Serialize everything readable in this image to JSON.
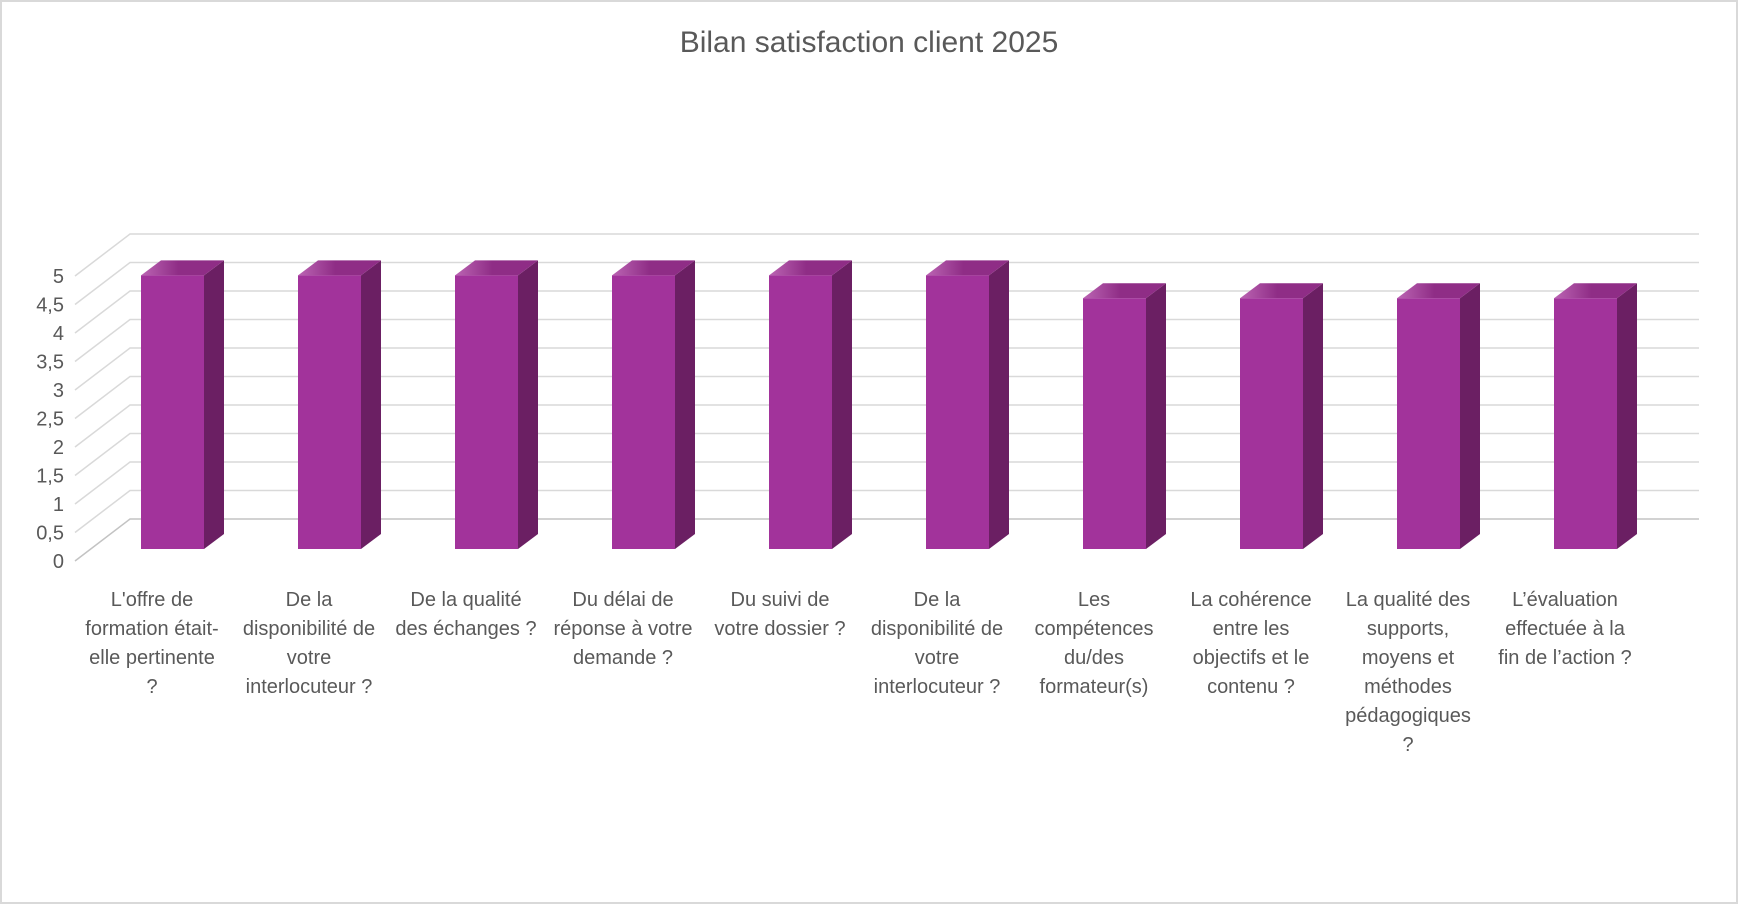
{
  "chart_data": {
    "type": "bar",
    "style": "3d-column",
    "title": "Bilan satisfaction client 2025",
    "categories": [
      "L'offre de formation était-elle pertinente ?",
      "De la disponibilité de votre interlocuteur ?",
      "De la qualité des échanges ?",
      "Du délai de réponse à votre demande ?",
      "Du suivi de votre dossier ?",
      "De la disponibilité de votre interlocuteur ?",
      "Les compétences du/des formateur(s)",
      "La cohérence entre les objectifs et le contenu ?",
      "La qualité des supports, moyens et méthodes pédagogiques ?",
      "L’évaluation effectuée à la fin de l’action ?"
    ],
    "values": [
      4.8,
      4.8,
      4.8,
      4.8,
      4.8,
      4.8,
      4.4,
      4.4,
      4.4,
      4.4
    ],
    "xlabel": "",
    "ylabel": "",
    "ylim": [
      0,
      5
    ],
    "ytick_step": 0.5,
    "ytick_labels": [
      "0",
      "0,5",
      "1",
      "1,5",
      "2",
      "2,5",
      "3",
      "3,5",
      "4",
      "4,5",
      "5"
    ],
    "grid": true,
    "legend": "none",
    "colors": {
      "bar_front": "#A2339B",
      "bar_side": "#6B1F63",
      "bar_top": "#8F2D86",
      "bar_top_highlight": "#BB64B3",
      "gridline": "#D9D9D9",
      "axis_line": "#C3C3C3",
      "text": "#595959",
      "background": "#FFFFFF",
      "border": "#D9D9D9"
    }
  }
}
